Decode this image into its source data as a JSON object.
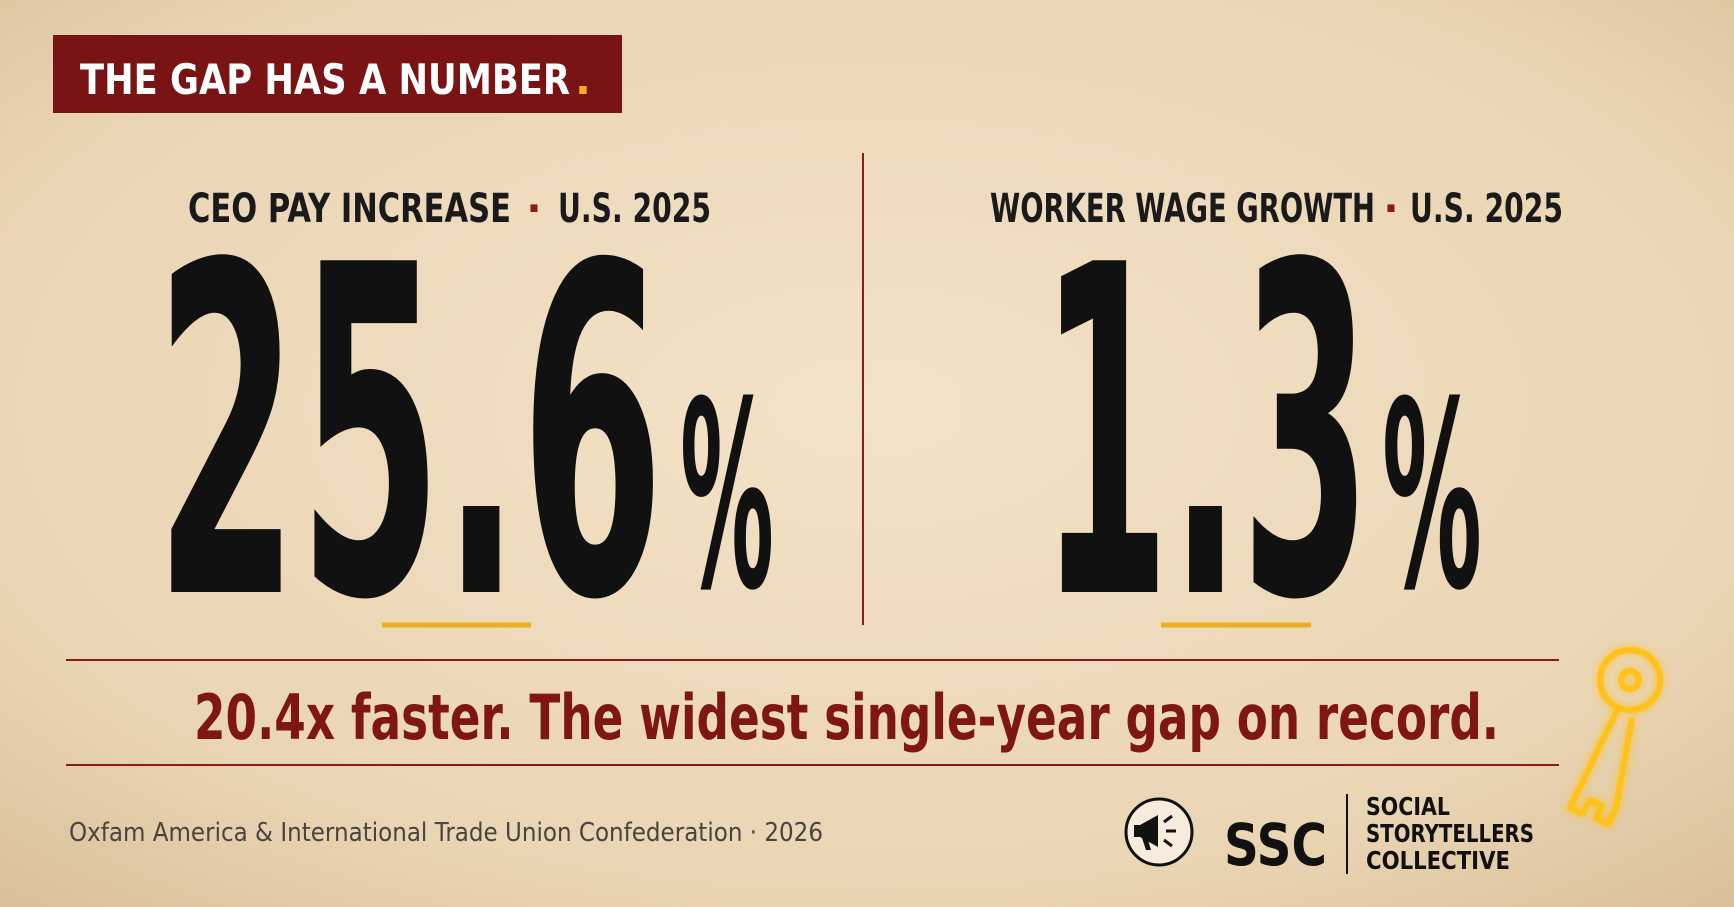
{
  "header": {
    "title": "THE GAP HAS A NUMBER",
    "title_mark": "."
  },
  "stats": [
    {
      "label": "CEO PAY INCREASE",
      "separator": "·",
      "scope": "U.S. 2025",
      "value": 25.6,
      "unit": "%"
    },
    {
      "label": "WORKER WAGE GROWTH",
      "separator": "·",
      "scope": "U.S. 2025",
      "value": 1.3,
      "unit": "%"
    }
  ],
  "conclusion": "20.4x faster. The widest single-year gap on record.",
  "source": "Oxfam America & International Trade Union Confederation · 2026",
  "logo": {
    "abbr": "SSC",
    "name": [
      "SOCIAL",
      "STORYTELLERS",
      "COLLECTIVE"
    ]
  }
}
